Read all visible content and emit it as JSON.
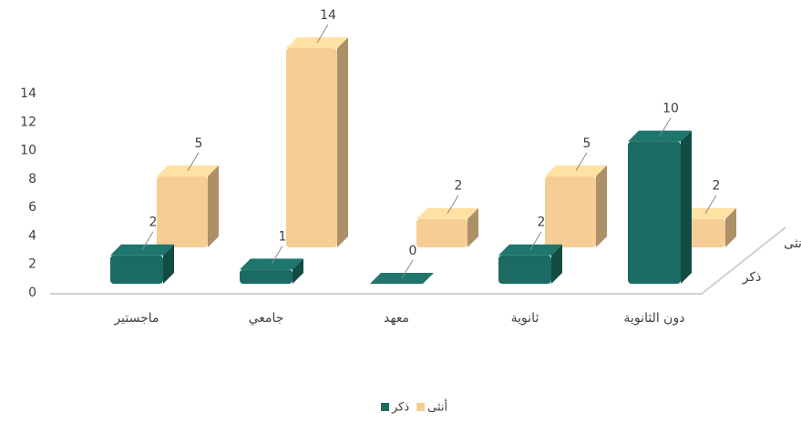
{
  "chart_data": {
    "type": "bar3d",
    "categories": [
      "ماجستير",
      "جامعي",
      "معهد",
      "ثانوية",
      "دون الثانوية"
    ],
    "series": [
      {
        "name": "ذكر",
        "color": "#1b6b63",
        "values": [
          2,
          1,
          0,
          2,
          10
        ]
      },
      {
        "name": "أنثى",
        "color": "#f6cd94",
        "values": [
          5,
          14,
          2,
          5,
          2
        ]
      }
    ],
    "ylim": [
      0,
      14
    ],
    "yticks": [
      0,
      2,
      4,
      6,
      8,
      10,
      12,
      14
    ],
    "legend": "bottom"
  }
}
